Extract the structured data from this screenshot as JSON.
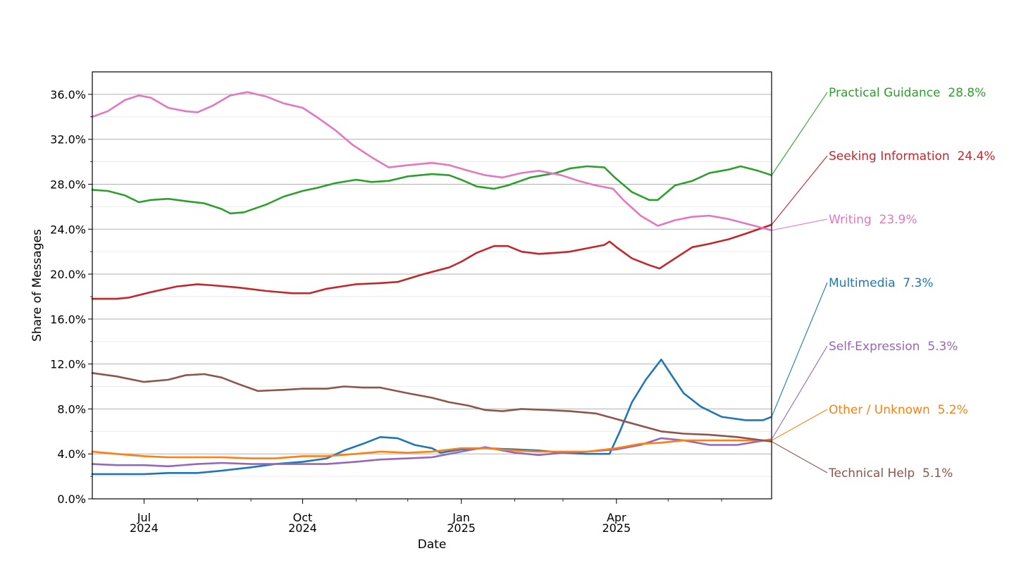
{
  "chart_data": {
    "type": "line",
    "xlabel": "Date",
    "ylabel": "Share of Messages",
    "ylim": [
      0,
      38
    ],
    "y_unit": "%",
    "y_ticks": [
      "0.0%",
      "4.0%",
      "8.0%",
      "12.0%",
      "16.0%",
      "20.0%",
      "24.0%",
      "28.0%",
      "32.0%",
      "36.0%"
    ],
    "x_range": [
      "2024-06-01",
      "2025-06-30"
    ],
    "x_major_ticks": [
      {
        "date": "2024-07-01",
        "month": "Jul",
        "year": "2024"
      },
      {
        "date": "2024-10-01",
        "month": "Oct",
        "year": "2024"
      },
      {
        "date": "2025-01-01",
        "month": "Jan",
        "year": "2025"
      },
      {
        "date": "2025-04-01",
        "month": "Apr",
        "year": "2025"
      }
    ],
    "grid": "horizontal",
    "legend": "end-labels-right",
    "series": [
      {
        "name": "Practical Guidance",
        "end_label": "28.8%",
        "color": "#2ca02c",
        "points": [
          [
            "2024-06-01",
            27.5
          ],
          [
            "2024-06-10",
            27.4
          ],
          [
            "2024-06-20",
            27.0
          ],
          [
            "2024-06-28",
            26.4
          ],
          [
            "2024-07-05",
            26.6
          ],
          [
            "2024-07-15",
            26.7
          ],
          [
            "2024-07-25",
            26.5
          ],
          [
            "2024-08-05",
            26.3
          ],
          [
            "2024-08-15",
            25.8
          ],
          [
            "2024-08-20",
            25.4
          ],
          [
            "2024-08-28",
            25.5
          ],
          [
            "2024-09-10",
            26.2
          ],
          [
            "2024-09-20",
            26.9
          ],
          [
            "2024-10-01",
            27.4
          ],
          [
            "2024-10-10",
            27.7
          ],
          [
            "2024-10-20",
            28.1
          ],
          [
            "2024-11-01",
            28.4
          ],
          [
            "2024-11-10",
            28.2
          ],
          [
            "2024-11-20",
            28.3
          ],
          [
            "2024-12-01",
            28.7
          ],
          [
            "2024-12-15",
            28.9
          ],
          [
            "2024-12-25",
            28.8
          ],
          [
            "2025-01-01",
            28.4
          ],
          [
            "2025-01-10",
            27.8
          ],
          [
            "2025-01-20",
            27.6
          ],
          [
            "2025-01-28",
            27.9
          ],
          [
            "2025-02-10",
            28.6
          ],
          [
            "2025-02-25",
            29.0
          ],
          [
            "2025-03-05",
            29.4
          ],
          [
            "2025-03-15",
            29.6
          ],
          [
            "2025-03-25",
            29.5
          ],
          [
            "2025-03-31",
            28.6
          ],
          [
            "2025-04-10",
            27.3
          ],
          [
            "2025-04-20",
            26.6
          ],
          [
            "2025-04-25",
            26.6
          ],
          [
            "2025-05-05",
            27.9
          ],
          [
            "2025-05-15",
            28.3
          ],
          [
            "2025-05-25",
            29.0
          ],
          [
            "2025-06-05",
            29.3
          ],
          [
            "2025-06-12",
            29.6
          ],
          [
            "2025-06-22",
            29.2
          ],
          [
            "2025-06-30",
            28.8
          ]
        ]
      },
      {
        "name": "Seeking Information",
        "end_label": "24.4%",
        "color": "#c1272d",
        "points": [
          [
            "2024-06-01",
            17.8
          ],
          [
            "2024-06-15",
            17.8
          ],
          [
            "2024-06-22",
            17.9
          ],
          [
            "2024-07-05",
            18.4
          ],
          [
            "2024-07-20",
            18.9
          ],
          [
            "2024-08-01",
            19.1
          ],
          [
            "2024-08-10",
            19.0
          ],
          [
            "2024-08-25",
            18.8
          ],
          [
            "2024-09-10",
            18.5
          ],
          [
            "2024-09-25",
            18.3
          ],
          [
            "2024-10-05",
            18.3
          ],
          [
            "2024-10-15",
            18.7
          ],
          [
            "2024-11-01",
            19.1
          ],
          [
            "2024-11-15",
            19.2
          ],
          [
            "2024-11-25",
            19.3
          ],
          [
            "2024-12-10",
            20.0
          ],
          [
            "2024-12-25",
            20.6
          ],
          [
            "2025-01-01",
            21.1
          ],
          [
            "2025-01-10",
            21.9
          ],
          [
            "2025-01-20",
            22.5
          ],
          [
            "2025-01-28",
            22.5
          ],
          [
            "2025-02-05",
            22.0
          ],
          [
            "2025-02-15",
            21.8
          ],
          [
            "2025-02-25",
            21.9
          ],
          [
            "2025-03-05",
            22.0
          ],
          [
            "2025-03-15",
            22.3
          ],
          [
            "2025-03-25",
            22.6
          ],
          [
            "2025-03-28",
            22.9
          ],
          [
            "2025-04-01",
            22.4
          ],
          [
            "2025-04-10",
            21.4
          ],
          [
            "2025-04-20",
            20.8
          ],
          [
            "2025-04-26",
            20.5
          ],
          [
            "2025-05-05",
            21.4
          ],
          [
            "2025-05-15",
            22.4
          ],
          [
            "2025-05-25",
            22.7
          ],
          [
            "2025-06-05",
            23.1
          ],
          [
            "2025-06-15",
            23.6
          ],
          [
            "2025-06-30",
            24.4
          ]
        ]
      },
      {
        "name": "Writing",
        "end_label": "23.9%",
        "color": "#e377c2",
        "points": [
          [
            "2024-06-01",
            34.0
          ],
          [
            "2024-06-10",
            34.5
          ],
          [
            "2024-06-20",
            35.5
          ],
          [
            "2024-06-28",
            35.9
          ],
          [
            "2024-07-05",
            35.7
          ],
          [
            "2024-07-15",
            34.8
          ],
          [
            "2024-07-25",
            34.5
          ],
          [
            "2024-08-01",
            34.4
          ],
          [
            "2024-08-10",
            35.0
          ],
          [
            "2024-08-20",
            35.9
          ],
          [
            "2024-08-30",
            36.2
          ],
          [
            "2024-09-10",
            35.8
          ],
          [
            "2024-09-20",
            35.2
          ],
          [
            "2024-10-01",
            34.8
          ],
          [
            "2024-10-10",
            33.9
          ],
          [
            "2024-10-20",
            32.8
          ],
          [
            "2024-10-30",
            31.5
          ],
          [
            "2024-11-10",
            30.4
          ],
          [
            "2024-11-20",
            29.5
          ],
          [
            "2024-12-01",
            29.7
          ],
          [
            "2024-12-15",
            29.9
          ],
          [
            "2024-12-25",
            29.7
          ],
          [
            "2025-01-05",
            29.2
          ],
          [
            "2025-01-15",
            28.8
          ],
          [
            "2025-01-25",
            28.6
          ],
          [
            "2025-02-05",
            29.0
          ],
          [
            "2025-02-15",
            29.2
          ],
          [
            "2025-02-28",
            28.8
          ],
          [
            "2025-03-10",
            28.3
          ],
          [
            "2025-03-20",
            27.9
          ],
          [
            "2025-03-30",
            27.6
          ],
          [
            "2025-04-05",
            26.6
          ],
          [
            "2025-04-15",
            25.2
          ],
          [
            "2025-04-25",
            24.3
          ],
          [
            "2025-05-05",
            24.8
          ],
          [
            "2025-05-15",
            25.1
          ],
          [
            "2025-05-25",
            25.2
          ],
          [
            "2025-06-05",
            24.9
          ],
          [
            "2025-06-15",
            24.5
          ],
          [
            "2025-06-30",
            23.9
          ]
        ]
      },
      {
        "name": "Multimedia",
        "end_label": "7.3%",
        "color": "#1f77b4",
        "points": [
          [
            "2024-06-01",
            2.2
          ],
          [
            "2024-06-15",
            2.2
          ],
          [
            "2024-07-01",
            2.2
          ],
          [
            "2024-07-15",
            2.3
          ],
          [
            "2024-08-01",
            2.3
          ],
          [
            "2024-08-15",
            2.5
          ],
          [
            "2024-09-01",
            2.8
          ],
          [
            "2024-09-15",
            3.1
          ],
          [
            "2024-10-01",
            3.3
          ],
          [
            "2024-10-15",
            3.6
          ],
          [
            "2024-10-25",
            4.3
          ],
          [
            "2024-11-05",
            4.9
          ],
          [
            "2024-11-15",
            5.5
          ],
          [
            "2024-11-25",
            5.4
          ],
          [
            "2024-12-05",
            4.8
          ],
          [
            "2024-12-15",
            4.5
          ],
          [
            "2024-12-20",
            4.1
          ],
          [
            "2025-01-01",
            4.4
          ],
          [
            "2025-01-15",
            4.5
          ],
          [
            "2025-02-01",
            4.4
          ],
          [
            "2025-02-15",
            4.3
          ],
          [
            "2025-03-01",
            4.1
          ],
          [
            "2025-03-15",
            4.0
          ],
          [
            "2025-03-28",
            4.0
          ],
          [
            "2025-04-03",
            6.0
          ],
          [
            "2025-04-10",
            8.6
          ],
          [
            "2025-04-18",
            10.6
          ],
          [
            "2025-04-27",
            12.4
          ],
          [
            "2025-05-03",
            11.0
          ],
          [
            "2025-05-10",
            9.4
          ],
          [
            "2025-05-20",
            8.2
          ],
          [
            "2025-06-01",
            7.3
          ],
          [
            "2025-06-15",
            7.0
          ],
          [
            "2025-06-25",
            7.0
          ],
          [
            "2025-06-30",
            7.3
          ]
        ]
      },
      {
        "name": "Self-Expression",
        "end_label": "5.3%",
        "color": "#9467bd",
        "points": [
          [
            "2024-06-01",
            3.1
          ],
          [
            "2024-06-15",
            3.0
          ],
          [
            "2024-07-01",
            3.0
          ],
          [
            "2024-07-15",
            2.9
          ],
          [
            "2024-08-01",
            3.1
          ],
          [
            "2024-08-15",
            3.2
          ],
          [
            "2024-09-01",
            3.1
          ],
          [
            "2024-09-15",
            3.1
          ],
          [
            "2024-10-01",
            3.1
          ],
          [
            "2024-10-15",
            3.1
          ],
          [
            "2024-11-01",
            3.3
          ],
          [
            "2024-11-15",
            3.5
          ],
          [
            "2024-12-01",
            3.6
          ],
          [
            "2024-12-15",
            3.7
          ],
          [
            "2025-01-01",
            4.2
          ],
          [
            "2025-01-15",
            4.6
          ],
          [
            "2025-02-01",
            4.1
          ],
          [
            "2025-02-15",
            3.9
          ],
          [
            "2025-03-01",
            4.1
          ],
          [
            "2025-03-15",
            4.2
          ],
          [
            "2025-04-01",
            4.4
          ],
          [
            "2025-04-15",
            4.8
          ],
          [
            "2025-04-27",
            5.4
          ],
          [
            "2025-05-10",
            5.2
          ],
          [
            "2025-05-25",
            4.8
          ],
          [
            "2025-06-10",
            4.8
          ],
          [
            "2025-06-30",
            5.3
          ]
        ]
      },
      {
        "name": "Other / Unknown",
        "end_label": "5.2%",
        "color": "#ff7f0e",
        "points": [
          [
            "2024-06-01",
            4.2
          ],
          [
            "2024-06-15",
            4.0
          ],
          [
            "2024-07-01",
            3.8
          ],
          [
            "2024-07-15",
            3.7
          ],
          [
            "2024-08-01",
            3.7
          ],
          [
            "2024-08-15",
            3.7
          ],
          [
            "2024-09-01",
            3.6
          ],
          [
            "2024-09-15",
            3.6
          ],
          [
            "2024-10-01",
            3.8
          ],
          [
            "2024-10-15",
            3.8
          ],
          [
            "2024-11-01",
            4.0
          ],
          [
            "2024-11-15",
            4.2
          ],
          [
            "2024-12-01",
            4.1
          ],
          [
            "2024-12-15",
            4.2
          ],
          [
            "2025-01-01",
            4.5
          ],
          [
            "2025-01-15",
            4.5
          ],
          [
            "2025-02-01",
            4.3
          ],
          [
            "2025-02-15",
            4.2
          ],
          [
            "2025-03-01",
            4.2
          ],
          [
            "2025-03-15",
            4.2
          ],
          [
            "2025-04-01",
            4.5
          ],
          [
            "2025-04-15",
            4.9
          ],
          [
            "2025-04-27",
            5.0
          ],
          [
            "2025-05-10",
            5.2
          ],
          [
            "2025-05-25",
            5.2
          ],
          [
            "2025-06-10",
            5.2
          ],
          [
            "2025-06-30",
            5.2
          ]
        ]
      },
      {
        "name": "Technical Help",
        "end_label": "5.1%",
        "color": "#8c564b",
        "points": [
          [
            "2024-06-01",
            11.2
          ],
          [
            "2024-06-15",
            10.9
          ],
          [
            "2024-07-01",
            10.4
          ],
          [
            "2024-07-15",
            10.6
          ],
          [
            "2024-07-25",
            11.0
          ],
          [
            "2024-08-05",
            11.1
          ],
          [
            "2024-08-15",
            10.8
          ],
          [
            "2024-08-25",
            10.2
          ],
          [
            "2024-09-05",
            9.6
          ],
          [
            "2024-09-20",
            9.7
          ],
          [
            "2024-10-01",
            9.8
          ],
          [
            "2024-10-15",
            9.8
          ],
          [
            "2024-10-25",
            10.0
          ],
          [
            "2024-11-05",
            9.9
          ],
          [
            "2024-11-15",
            9.9
          ],
          [
            "2024-12-01",
            9.4
          ],
          [
            "2024-12-15",
            9.0
          ],
          [
            "2024-12-25",
            8.6
          ],
          [
            "2025-01-05",
            8.3
          ],
          [
            "2025-01-15",
            7.9
          ],
          [
            "2025-01-25",
            7.8
          ],
          [
            "2025-02-05",
            8.0
          ],
          [
            "2025-02-20",
            7.9
          ],
          [
            "2025-03-05",
            7.8
          ],
          [
            "2025-03-20",
            7.6
          ],
          [
            "2025-04-01",
            7.1
          ],
          [
            "2025-04-15",
            6.5
          ],
          [
            "2025-04-27",
            6.0
          ],
          [
            "2025-05-10",
            5.8
          ],
          [
            "2025-05-25",
            5.7
          ],
          [
            "2025-06-10",
            5.5
          ],
          [
            "2025-06-30",
            5.1
          ]
        ]
      }
    ]
  }
}
